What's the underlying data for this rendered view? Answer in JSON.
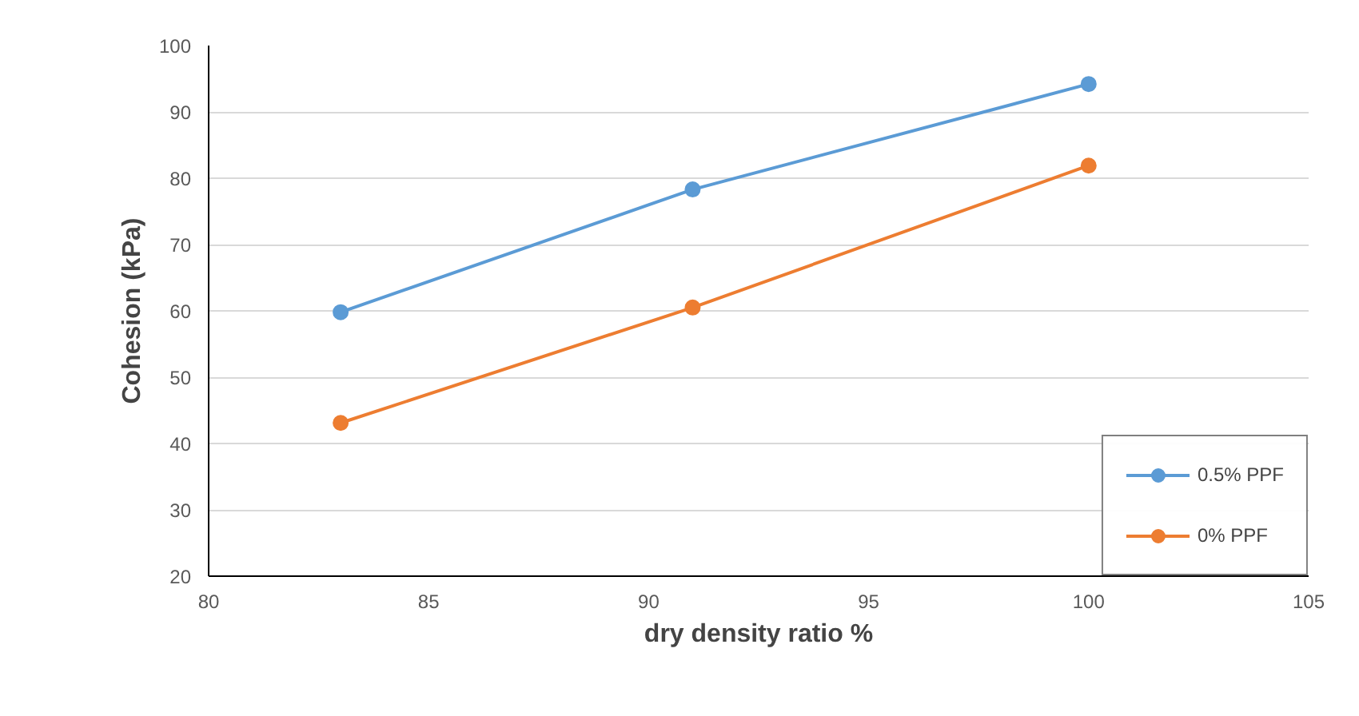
{
  "chart_data": {
    "type": "line",
    "xlabel": "dry density ratio %",
    "ylabel": "Cohesion (kPa)",
    "x": [
      83,
      91,
      100
    ],
    "series": [
      {
        "name": "0.5% PPF",
        "color": "#5b9bd5",
        "values": [
          59.8,
          78.3,
          94.2
        ]
      },
      {
        "name": "0% PPF",
        "color": "#ed7d31",
        "values": [
          43.1,
          60.5,
          81.9
        ]
      }
    ],
    "xlim": [
      80,
      105
    ],
    "xticks": [
      80,
      85,
      90,
      95,
      100,
      105
    ],
    "ylim": [
      20,
      100
    ],
    "yticks": [
      20,
      30,
      40,
      50,
      60,
      70,
      80,
      90,
      100
    ],
    "grid": "y",
    "legend": "bottom right",
    "marker": "circle",
    "line_style": "solid"
  }
}
